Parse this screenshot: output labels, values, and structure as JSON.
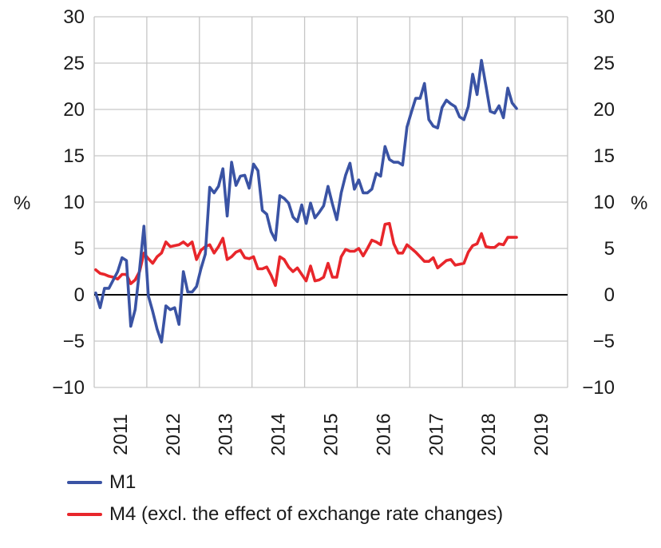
{
  "chart_data": {
    "type": "line",
    "title": "",
    "xlabel": "",
    "ylabel_left": "%",
    "ylabel_right": "%",
    "ylim": [
      -10,
      30
    ],
    "yticks": [
      30,
      25,
      20,
      15,
      10,
      5,
      0,
      -5,
      -10
    ],
    "ytick_labels": [
      "30",
      "25",
      "20",
      "15",
      "10",
      "5",
      "0",
      "−5",
      "−10"
    ],
    "x_start": "2011-01",
    "x_frequency": "monthly",
    "x_range_years": [
      2011,
      2020
    ],
    "xtick_labels": [
      "2011",
      "2012",
      "2013",
      "2014",
      "2015",
      "2016",
      "2017",
      "2018",
      "2019"
    ],
    "grid": true,
    "zero_line": true,
    "legend_position": "bottom-left",
    "series": [
      {
        "name": "M1",
        "color": "#3a53a4",
        "values": [
          0.2,
          -1.4,
          0.7,
          0.7,
          1.6,
          2.5,
          4.0,
          3.7,
          -3.4,
          -1.6,
          2.7,
          7.4,
          -0.1,
          -1.8,
          -3.7,
          -5.1,
          -1.2,
          -1.6,
          -1.4,
          -3.2,
          2.5,
          0.3,
          0.3,
          0.9,
          2.8,
          4.4,
          11.6,
          11.0,
          11.7,
          13.6,
          8.5,
          14.3,
          11.8,
          12.8,
          12.9,
          11.5,
          14.1,
          13.4,
          9.1,
          8.7,
          6.8,
          5.9,
          10.7,
          10.4,
          9.9,
          8.4,
          7.9,
          9.7,
          7.7,
          9.9,
          8.3,
          8.9,
          9.6,
          11.7,
          9.8,
          8.1,
          11.0,
          12.9,
          14.2,
          11.4,
          12.4,
          11.0,
          11.0,
          11.4,
          13.1,
          12.8,
          16.0,
          14.6,
          14.3,
          14.3,
          14.0,
          18.1,
          19.7,
          21.2,
          21.2,
          22.8,
          18.9,
          18.2,
          18.0,
          20.2,
          21.0,
          20.6,
          20.3,
          19.2,
          18.9,
          20.3,
          23.8,
          21.6,
          25.3,
          22.6,
          19.8,
          19.6,
          20.4,
          19.1,
          22.3,
          20.7,
          20.1
        ]
      },
      {
        "name": "M4 (excl. the effect of exchange rate changes)",
        "color": "#e8262b",
        "values": [
          2.7,
          2.3,
          2.2,
          2.0,
          1.9,
          1.7,
          2.2,
          2.2,
          1.2,
          1.6,
          2.5,
          4.5,
          3.9,
          3.4,
          4.1,
          4.5,
          5.7,
          5.2,
          5.3,
          5.4,
          5.7,
          5.3,
          5.7,
          3.8,
          4.8,
          5.2,
          5.4,
          4.5,
          5.2,
          6.1,
          3.8,
          4.1,
          4.6,
          4.8,
          4.0,
          3.9,
          4.1,
          2.8,
          2.8,
          3.0,
          2.1,
          1.0,
          4.1,
          3.8,
          3.0,
          2.5,
          2.9,
          2.2,
          1.5,
          3.1,
          1.5,
          1.6,
          1.9,
          3.4,
          1.9,
          1.9,
          4.1,
          4.9,
          4.7,
          4.7,
          5.0,
          4.2,
          5.0,
          5.9,
          5.7,
          5.4,
          7.6,
          7.7,
          5.5,
          4.5,
          4.5,
          5.4,
          5.0,
          4.6,
          4.1,
          3.6,
          3.6,
          4.0,
          2.9,
          3.3,
          3.7,
          3.8,
          3.2,
          3.3,
          3.4,
          4.6,
          5.3,
          5.5,
          6.6,
          5.2,
          5.1,
          5.1,
          5.5,
          5.4,
          6.2,
          6.2,
          6.2
        ]
      }
    ]
  },
  "legend": {
    "items": [
      {
        "label": "M1",
        "color": "#3a53a4"
      },
      {
        "label": "M4 (excl. the effect of exchange rate changes)",
        "color": "#e8262b"
      }
    ]
  }
}
